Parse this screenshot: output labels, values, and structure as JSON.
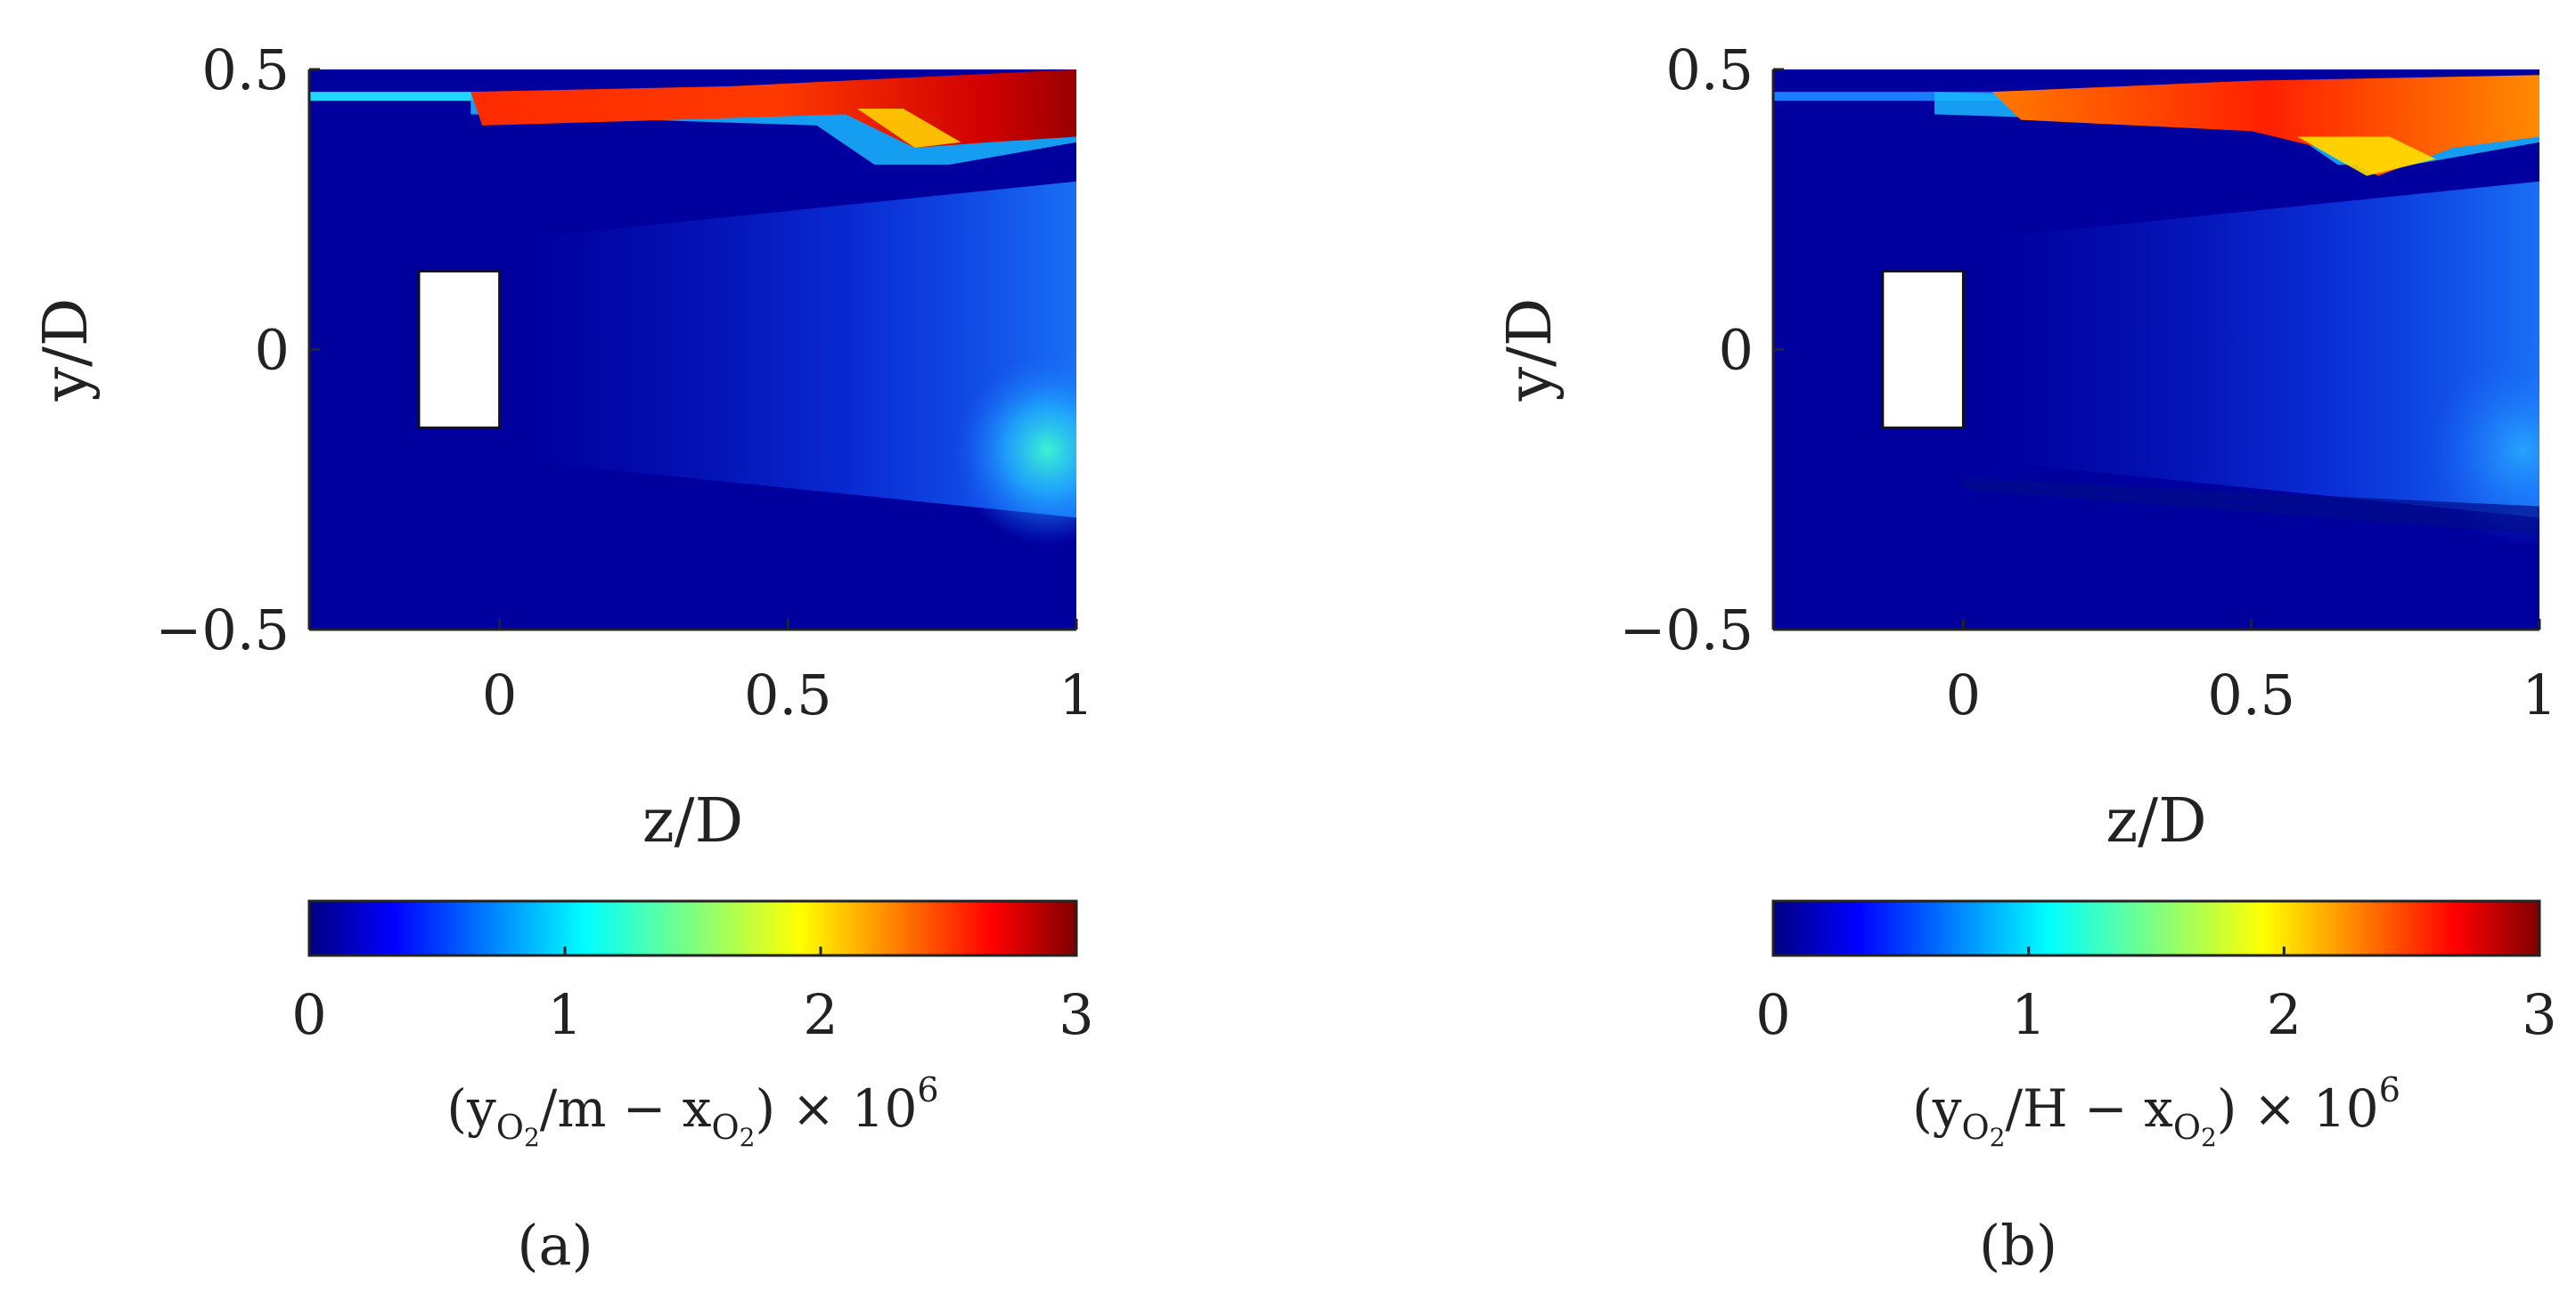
{
  "chart_data": [
    {
      "type": "heatmap",
      "panel_label": "(a)",
      "title": "",
      "xlabel": "z/D",
      "ylabel": "y/D",
      "xlim": [
        -0.33,
        1.0
      ],
      "ylim": [
        -0.5,
        0.5
      ],
      "x_ticks": [
        0,
        0.5,
        1
      ],
      "x_tick_labels": [
        "0",
        "0.5",
        "1"
      ],
      "y_ticks": [
        -0.5,
        0,
        0.5
      ],
      "y_tick_labels": [
        "−0.5",
        "0",
        "0.5"
      ],
      "obstacle": {
        "z_range": [
          -0.14,
          0.0
        ],
        "y_range": [
          -0.14,
          0.14
        ]
      },
      "colorbar": {
        "colormap": "jet",
        "range": [
          0,
          3
        ],
        "ticks": [
          0,
          1,
          2,
          3
        ],
        "tick_labels": [
          "0",
          "1",
          "2",
          "3"
        ],
        "label_parts": [
          "(y",
          "O",
          "2",
          "/m − x",
          "O",
          "2",
          ") × 10",
          "6"
        ]
      }
    },
    {
      "type": "heatmap",
      "panel_label": "(b)",
      "title": "",
      "xlabel": "z/D",
      "ylabel": "y/D",
      "xlim": [
        -0.33,
        1.0
      ],
      "ylim": [
        -0.5,
        0.5
      ],
      "x_ticks": [
        0,
        0.5,
        1
      ],
      "x_tick_labels": [
        "0",
        "0.5",
        "1"
      ],
      "y_ticks": [
        -0.5,
        0,
        0.5
      ],
      "y_tick_labels": [
        "−0.5",
        "0",
        "0.5"
      ],
      "obstacle": {
        "z_range": [
          -0.14,
          0.0
        ],
        "y_range": [
          -0.14,
          0.14
        ]
      },
      "colorbar": {
        "colormap": "jet",
        "range": [
          0,
          3
        ],
        "ticks": [
          0,
          1,
          2,
          3
        ],
        "tick_labels": [
          "0",
          "1",
          "2",
          "3"
        ],
        "label_parts": [
          "(y",
          "O",
          "2",
          "/H − x",
          "O",
          "2",
          ") × 10",
          "6"
        ]
      }
    }
  ]
}
